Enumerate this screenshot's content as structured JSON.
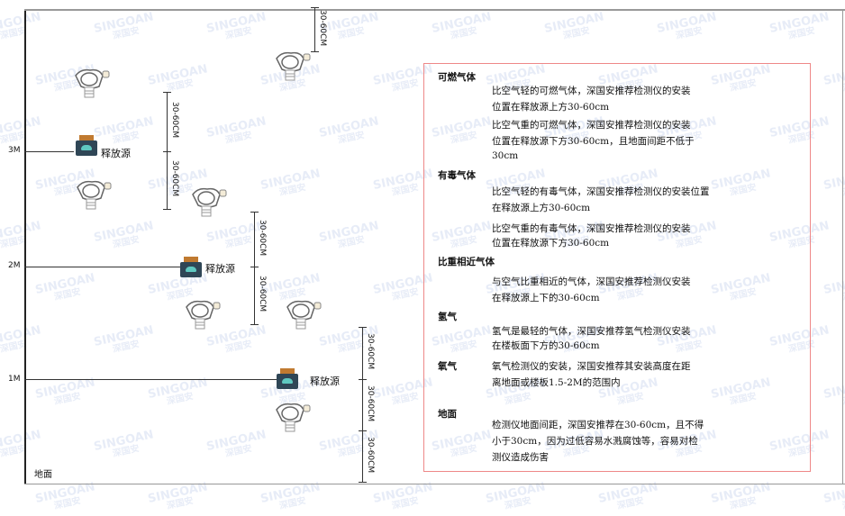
{
  "watermark": {
    "brand": "SINGOAN",
    "cn": "深国安"
  },
  "levels": [
    {
      "label": "3M"
    },
    {
      "label": "2M"
    },
    {
      "label": "1M"
    }
  ],
  "ground_label": "地面",
  "source_label": "释放源",
  "dimension_label": "30-60CM",
  "colors": {
    "box_border": "#e88",
    "source_body": "#2f4656",
    "source_cap": "#c07a30",
    "detector": "#666"
  },
  "notes": [
    {
      "heading": "可燃气体",
      "paragraphs": [
        [
          "比空气轻的可燃气体，深国安推荐检测仪的安装",
          "位置在释放源上方30-60cm"
        ],
        [
          "比空气重的可燃气体，深国安推荐检测仪的安装",
          "位置在释放源下方30-60cm，且地面间距不低于",
          "30cm"
        ]
      ]
    },
    {
      "heading": "有毒气体",
      "paragraphs": [
        [
          "比空气轻的有毒气体，深国安推荐检测仪的安装位置",
          "在释放源上方30-60cm"
        ],
        [
          "比空气重的有毒气体，深国安推荐检测仪的安装",
          "位置在释放源下方30-60cm"
        ]
      ]
    },
    {
      "heading": "比重相近气体",
      "paragraphs": [
        [
          "与空气比重相近的气体，深国安推荐检测仪安装",
          "在释放源上下的30-60cm"
        ]
      ]
    },
    {
      "heading": "氢气",
      "paragraphs": [
        [
          "氢气是最轻的气体，深国安推荐氢气检测仪安装",
          "在楼板面下方的30-60cm"
        ]
      ]
    },
    {
      "heading": "氧气",
      "paragraphs": [
        [
          "氧气检测仪的安装，深国安推荐其安装高度在距",
          "离地面或楼板1.5-2M的范围内"
        ]
      ]
    },
    {
      "heading": "地面",
      "paragraphs": [
        [
          "检测仪地面间距，深国安推荐在30-60cm，且不得",
          "小于30cm，因为过低容易水溅腐蚀等，容易对检",
          "测仪造成伤害"
        ]
      ]
    }
  ]
}
